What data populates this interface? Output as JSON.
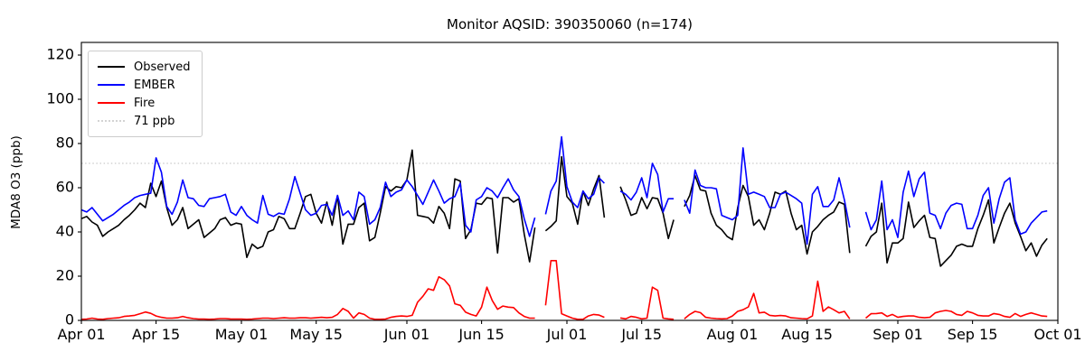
{
  "title": "Monitor AQSID: 390350060 (n=174)",
  "ylabel": "MDA8 O3 (ppb)",
  "legend": [
    {
      "label": "Observed",
      "color": "#000000",
      "style": "solid"
    },
    {
      "label": "EMBER",
      "color": "#0000ff",
      "style": "solid"
    },
    {
      "label": "Fire",
      "color": "#ff0000",
      "style": "solid"
    },
    {
      "label": "71 ppb",
      "color": "#d3d3d3",
      "style": "dotted"
    }
  ],
  "chart_data": {
    "type": "line",
    "title": "Monitor AQSID: 390350060 (n=174)",
    "xlabel": "",
    "ylabel": "MDA8 O3 (ppb)",
    "x_unit": "days since Apr 01",
    "x_range_days": 183,
    "ylim": [
      0,
      125.7
    ],
    "yticks": [
      0,
      20,
      40,
      60,
      80,
      100,
      120
    ],
    "grid": false,
    "legend_position": "upper left",
    "threshold_line": {
      "value": 71,
      "label": "71 ppb",
      "color": "#d3d3d3",
      "style": "dotted"
    },
    "xticks": [
      {
        "day": 0,
        "label": "Apr 01"
      },
      {
        "day": 14,
        "label": "Apr 15"
      },
      {
        "day": 30,
        "label": "May 01"
      },
      {
        "day": 44,
        "label": "May 15"
      },
      {
        "day": 61,
        "label": "Jun 01"
      },
      {
        "day": 75,
        "label": "Jun 15"
      },
      {
        "day": 91,
        "label": "Jul 01"
      },
      {
        "day": 105,
        "label": "Jul 15"
      },
      {
        "day": 122,
        "label": "Aug 01"
      },
      {
        "day": 136,
        "label": "Aug 15"
      },
      {
        "day": 153,
        "label": "Sep 01"
      },
      {
        "day": 167,
        "label": "Sep 15"
      },
      {
        "day": 183,
        "label": "Oct 01"
      }
    ],
    "series": [
      {
        "name": "Observed",
        "color": "#000000",
        "values": [
          46,
          47,
          44.5,
          43,
          38,
          40,
          41.5,
          43,
          45.5,
          47.5,
          50,
          53,
          51,
          62,
          56,
          63,
          51,
          43,
          45.5,
          51,
          41.5,
          43.5,
          45.5,
          37.5,
          39.5,
          41.5,
          45.5,
          46.5,
          43,
          44,
          43.5,
          28.5,
          34.5,
          32.5,
          33.5,
          40,
          41,
          47,
          46,
          41.5,
          41.5,
          48.5,
          56,
          57,
          48.5,
          44,
          53.5,
          43,
          56.5,
          34.5,
          43.5,
          43.5,
          51,
          53,
          36,
          37.5,
          48.5,
          60.5,
          58.5,
          60.5,
          60,
          63.5,
          77,
          47.5,
          47,
          46.5,
          44,
          51.5,
          48.5,
          41.5,
          64,
          63,
          37,
          41,
          53,
          52.5,
          55.5,
          55,
          30.5,
          55.5,
          55.5,
          53.5,
          55,
          39,
          26.5,
          42,
          null,
          40.5,
          42.5,
          45,
          74,
          56,
          53,
          43.5,
          58.5,
          52,
          59.5,
          65.5,
          46.5,
          null,
          null,
          60.5,
          54.5,
          47.5,
          48.5,
          55.5,
          50.5,
          55.5,
          55,
          48.5,
          37,
          45.5,
          null,
          51.5,
          56.5,
          65.5,
          59,
          58.5,
          48.5,
          43,
          41,
          38,
          36.5,
          51,
          61,
          56,
          43,
          45.5,
          41,
          48.5,
          58,
          57,
          58.5,
          48.5,
          41,
          43,
          30,
          40,
          42.5,
          45.5,
          47.5,
          49,
          53.5,
          52.5,
          30.5,
          null,
          null,
          33.5,
          38,
          40,
          53,
          26,
          35,
          35,
          37,
          53.5,
          42,
          45,
          47.5,
          37.5,
          37,
          24.5,
          27,
          29.5,
          33.5,
          34.5,
          33.5,
          33.5,
          41.5,
          47.5,
          54.5,
          35,
          42,
          48.5,
          53,
          44,
          38,
          31.5,
          35,
          29,
          34,
          37,
          null,
          null
        ]
      },
      {
        "name": "EMBER",
        "color": "#0000ff",
        "values": [
          50,
          49,
          51,
          48,
          45,
          46.5,
          48,
          50,
          52,
          53.5,
          55.5,
          56.5,
          57,
          57.5,
          73.5,
          67,
          51.5,
          48,
          53.5,
          63.5,
          55.5,
          55,
          52,
          51.5,
          55,
          55.5,
          56,
          57,
          49,
          47.5,
          51.5,
          47.5,
          45.5,
          44,
          56.5,
          48,
          47,
          48.5,
          48,
          55,
          65,
          57.5,
          50,
          47.5,
          48.5,
          52,
          52.5,
          47.5,
          56.5,
          47.5,
          49.5,
          45.5,
          58,
          56,
          43.5,
          45.5,
          51,
          62.5,
          56,
          58,
          59,
          63.5,
          60.5,
          56.5,
          52.5,
          58,
          63.5,
          58.5,
          53,
          55,
          56,
          62,
          43,
          40,
          54.5,
          56,
          60,
          58.5,
          55.5,
          60,
          64,
          59,
          56,
          46,
          38,
          46.5,
          null,
          48,
          58.5,
          63,
          83,
          60.5,
          53.5,
          51,
          58.5,
          55,
          57,
          64.5,
          62,
          null,
          null,
          58.5,
          57,
          54.5,
          58,
          64.5,
          55.5,
          71,
          66,
          49,
          55,
          55,
          null,
          54.5,
          48.5,
          68,
          61,
          60,
          60,
          59.5,
          47.5,
          46.5,
          45.5,
          47.5,
          78,
          57,
          58,
          57,
          56,
          51,
          51,
          57,
          58,
          56.5,
          55,
          53,
          34.5,
          57,
          60.5,
          51.5,
          51.5,
          54.5,
          64.5,
          54.5,
          42,
          null,
          null,
          49,
          41,
          45.5,
          63,
          41,
          45.5,
          37.5,
          58,
          67.5,
          56,
          64,
          67,
          48.5,
          47.5,
          41.5,
          48.5,
          52,
          53,
          52.5,
          41.5,
          41.5,
          47.5,
          56.5,
          60,
          44,
          55,
          62.5,
          64.5,
          45.5,
          39,
          40,
          44,
          46.5,
          49,
          49.5,
          null,
          null
        ]
      },
      {
        "name": "Fire",
        "color": "#ff0000",
        "values": [
          0.5,
          0.6,
          1,
          0.6,
          0.5,
          0.8,
          1,
          1.2,
          1.8,
          2,
          2.3,
          3,
          3.8,
          3.2,
          2,
          1.4,
          1,
          1,
          1.2,
          1.8,
          1.2,
          0.8,
          0.6,
          0.6,
          0.5,
          0.6,
          0.8,
          0.8,
          0.6,
          0.6,
          0.6,
          0.5,
          0.6,
          0.8,
          1,
          1,
          0.8,
          1,
          1.2,
          1,
          1,
          1.2,
          1.2,
          1,
          1.2,
          1.4,
          1.2,
          1.4,
          2.7,
          5.4,
          4.1,
          1,
          3.4,
          2.7,
          1,
          0.5,
          0.5,
          0.6,
          1.4,
          1.8,
          2,
          1.8,
          2.3,
          8.2,
          10.9,
          14.3,
          13.6,
          19.7,
          18.4,
          15.6,
          7.5,
          6.8,
          3.7,
          2.7,
          2,
          6,
          15,
          9,
          5,
          6.5,
          6,
          5.8,
          3.4,
          1.8,
          1,
          1,
          null,
          6.8,
          27,
          27,
          3,
          2,
          1,
          0.5,
          0.5,
          2,
          2.7,
          2.4,
          1.4,
          null,
          null,
          1.1,
          0.7,
          1.8,
          1.4,
          0.7,
          1,
          15,
          13.6,
          1,
          0.7,
          0.5,
          null,
          0.7,
          2.7,
          4.1,
          3.5,
          1.4,
          1,
          0.8,
          0.7,
          0.8,
          2,
          4.1,
          4.8,
          6.1,
          12.2,
          3.4,
          3.7,
          2.3,
          2,
          2.2,
          2,
          1.2,
          1,
          0.8,
          0.7,
          2,
          17.7,
          4.1,
          6.1,
          4.8,
          3.4,
          4.1,
          0.7,
          null,
          null,
          1,
          3,
          3.1,
          3.4,
          1.8,
          2.7,
          1.4,
          1.8,
          2,
          2,
          1.4,
          1.2,
          1.4,
          3.4,
          4.1,
          4.5,
          4.1,
          2.7,
          2.3,
          4.1,
          3.4,
          2.3,
          2,
          2,
          3.1,
          2.7,
          1.8,
          1.4,
          3.1,
          1.8,
          2.7,
          3.4,
          2.7,
          2,
          1.8,
          null,
          null
        ]
      }
    ]
  }
}
